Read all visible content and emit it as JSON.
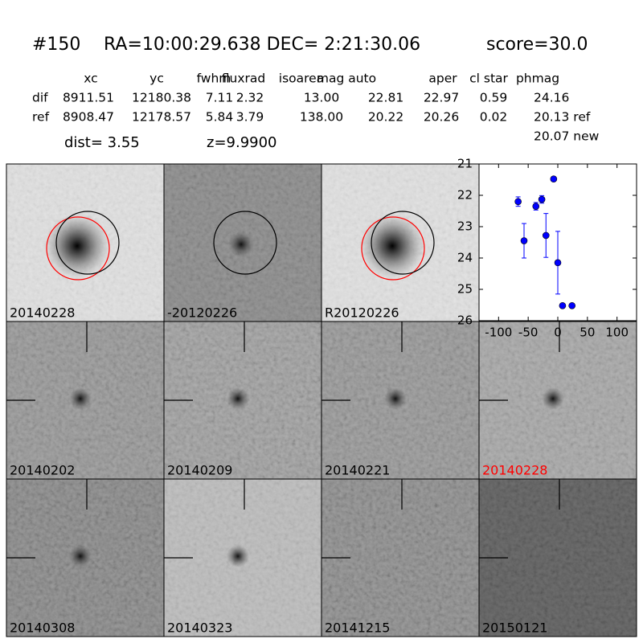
{
  "header": {
    "id": "#150",
    "coords": "RA=10:00:29.638 DEC= 2:21:30.06",
    "score": "score=30.0",
    "dist": "dist=  3.55",
    "z": "z=9.9900"
  },
  "table": {
    "columns": [
      "xc",
      "yc",
      "fwhm",
      "fluxrad",
      "isoarea",
      "mag auto",
      "aper",
      "cl star",
      "phmag"
    ],
    "rows": [
      [
        "dif",
        "8911.51",
        "12180.38",
        "7.11",
        "2.32",
        "13.00",
        "22.81",
        "22.97",
        "0.59",
        "24.16"
      ],
      [
        "ref",
        "8908.47",
        "12178.57",
        "5.84",
        "3.79",
        "138.00",
        "20.22",
        "20.26",
        "0.02",
        "20.13 ref"
      ]
    ],
    "note": "20.07 new"
  },
  "stamps": [
    {
      "label": "20140228",
      "color": "#000000"
    },
    {
      "label": "-20120226",
      "color": "#000000"
    },
    {
      "label": "R20120226",
      "color": "#000000"
    },
    {
      "label": "20140202",
      "color": "#000000"
    },
    {
      "label": "20140209",
      "color": "#000000"
    },
    {
      "label": "20140221",
      "color": "#000000"
    },
    {
      "label": "20140228",
      "color": "#ff0000"
    },
    {
      "label": "20140308",
      "color": "#000000"
    },
    {
      "label": "20140323",
      "color": "#000000"
    },
    {
      "label": "20141215",
      "color": "#000000"
    },
    {
      "label": "20150121",
      "color": "#000000"
    }
  ],
  "chart_data": {
    "type": "scatter",
    "color": "#0000ff",
    "x": [
      -67,
      -57,
      -37,
      -27,
      -20,
      -7,
      0,
      8,
      24
    ],
    "values": [
      22.2,
      23.45,
      22.35,
      22.13,
      23.28,
      21.48,
      24.15,
      25.52,
      25.52
    ],
    "errors": [
      0.15,
      0.55,
      0.12,
      0.12,
      0.7,
      0.07,
      1.0,
      0.05,
      0.05
    ],
    "xlim": [
      -133,
      133
    ],
    "xticks": [
      -100,
      -50,
      0,
      50,
      100
    ],
    "ylim": [
      21,
      26
    ],
    "yticks": [
      21,
      22,
      23,
      24,
      25,
      26
    ],
    "y_inverted": true
  }
}
